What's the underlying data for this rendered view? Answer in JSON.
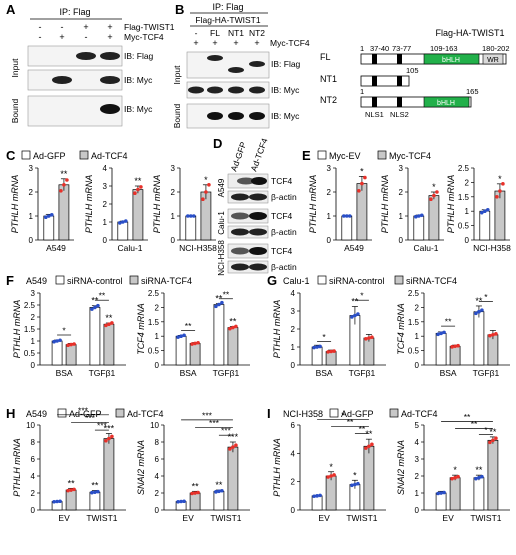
{
  "panel_labels": [
    "A",
    "B",
    "C",
    "D",
    "E",
    "F",
    "G",
    "H",
    "I"
  ],
  "panelA": {
    "header": "IP: Flag",
    "rows": [
      "Flag-TWIST1",
      "Myc-TCF4"
    ],
    "signs": [
      [
        "-",
        "-",
        "+",
        "+"
      ],
      [
        "-",
        "+",
        "-",
        "+"
      ]
    ],
    "sections": [
      "Input",
      "Bound"
    ],
    "blot_labels": [
      "IB: Flag",
      "IB: Myc",
      "IB: Myc"
    ]
  },
  "panelB": {
    "header": "IP: Flag",
    "construct": "Flag-HA-TWIST1",
    "lanes": [
      "-",
      "FL",
      "NT1",
      "NT2"
    ],
    "myc_row": "Myc-TCF4",
    "myc_signs": [
      "+",
      "+",
      "+",
      "+"
    ],
    "sections": [
      "Input",
      "Bound"
    ],
    "blot_labels": [
      "IB: Flag",
      "IB: Myc",
      "IB: Myc"
    ]
  },
  "domain": {
    "title": "Flag-HA-TWIST1",
    "rows": [
      {
        "name": "FL",
        "start": "1",
        "pos": [
          "37-40",
          "73-77",
          "109-163",
          "180-202"
        ],
        "bhlh": "bHLH",
        "wr": "WR"
      },
      {
        "name": "NT1",
        "end": "105"
      },
      {
        "name": "NT2",
        "start": "1",
        "end": "165",
        "bhlh": "bHLH",
        "nls": [
          "NLS1",
          "NLS2"
        ]
      }
    ],
    "colors": {
      "bhlh": "#22b04a",
      "wr": "#d9d9d9"
    }
  },
  "panelD": {
    "cols": [
      "Ad-GFP",
      "Ad-TCF4"
    ],
    "cells": [
      "A549",
      "Calu-1",
      "NCI-H358"
    ],
    "blots": [
      "TCF4",
      "β-actin"
    ]
  },
  "legendC": [
    "Ad-GFP",
    "Ad-TCF4"
  ],
  "legendE": [
    "Myc-EV",
    "Myc-TCF4"
  ],
  "legendF": [
    "A549",
    "siRNA-control",
    "siRNA-TCF4"
  ],
  "legendG": [
    "Calu-1",
    "siRNA-control",
    "siRNA-TCF4"
  ],
  "legendH": [
    "A549",
    "Ad-GFP",
    "Ad-TCF4"
  ],
  "legendI": [
    "NCI-H358",
    "Ad-GFP",
    "Ad-TCF4"
  ],
  "chart_data": [
    {
      "id": "C1",
      "type": "bar",
      "ylabel": "PTHLH mRNA",
      "xlabel": "A549",
      "ylim": [
        0,
        3
      ],
      "ticks": [
        0,
        1,
        2,
        3
      ],
      "categories": [
        "Ad-GFP",
        "Ad-TCF4"
      ],
      "values": [
        1,
        2.3
      ],
      "errors": [
        0.07,
        0.25
      ],
      "sig": [
        "",
        "**"
      ],
      "points": [
        [
          0.95,
          1.0,
          1.05
        ],
        [
          2.05,
          2.3,
          2.5
        ]
      ]
    },
    {
      "id": "C2",
      "type": "bar",
      "ylabel": "PTHLH mRNA",
      "xlabel": "Calu-1",
      "ylim": [
        0,
        4
      ],
      "ticks": [
        0,
        1,
        2,
        3,
        4
      ],
      "categories": [
        "Ad-GFP",
        "Ad-TCF4"
      ],
      "values": [
        1,
        2.8
      ],
      "errors": [
        0.05,
        0.2
      ],
      "sig": [
        "",
        "**"
      ],
      "points": [
        [
          0.95,
          1.0,
          1.05
        ],
        [
          2.6,
          2.8,
          2.95
        ]
      ]
    },
    {
      "id": "C3",
      "type": "bar",
      "ylabel": "PTHLH mRNA",
      "xlabel": "NCI-H358",
      "ylim": [
        0,
        3
      ],
      "ticks": [
        0,
        1,
        2,
        3
      ],
      "categories": [
        "Ad-GFP",
        "Ad-TCF4"
      ],
      "values": [
        1,
        2.0
      ],
      "errors": [
        0.03,
        0.3
      ],
      "sig": [
        "",
        "*"
      ],
      "points": [
        [
          1.0,
          1.0,
          1.0
        ],
        [
          1.7,
          2.0,
          2.3
        ]
      ]
    },
    {
      "id": "E1",
      "type": "bar",
      "ylabel": "PTHLH mRNA",
      "xlabel": "A549",
      "ylim": [
        0,
        3
      ],
      "ticks": [
        0,
        1,
        2,
        3
      ],
      "categories": [
        "Myc-EV",
        "Myc-TCF4"
      ],
      "values": [
        1,
        2.35
      ],
      "errors": [
        0.03,
        0.3
      ],
      "sig": [
        "",
        "*"
      ],
      "points": [
        [
          1.0,
          1.0,
          1.0
        ],
        [
          2.05,
          2.35,
          2.6
        ]
      ]
    },
    {
      "id": "E2",
      "type": "bar",
      "ylabel": "PTHLH mRNA",
      "xlabel": "Calu-1",
      "ylim": [
        0,
        3
      ],
      "ticks": [
        0,
        1,
        2,
        3
      ],
      "categories": [
        "Myc-EV",
        "Myc-TCF4"
      ],
      "values": [
        1,
        1.85
      ],
      "errors": [
        0.04,
        0.15
      ],
      "sig": [
        "",
        "*"
      ],
      "points": [
        [
          0.97,
          1.0,
          1.03
        ],
        [
          1.7,
          1.85,
          2.0
        ]
      ]
    },
    {
      "id": "E3",
      "type": "bar",
      "ylabel": "PTHLH mRNA",
      "xlabel": "NCI-H358",
      "ylim": [
        0,
        2.5
      ],
      "ticks": [
        0,
        0.5,
        1,
        1.5,
        2,
        2.5
      ],
      "categories": [
        "Myc-EV",
        "Myc-TCF4"
      ],
      "values": [
        1,
        1.7
      ],
      "errors": [
        0.05,
        0.25
      ],
      "sig": [
        "",
        "*"
      ],
      "points": [
        [
          0.95,
          1.0,
          1.05
        ],
        [
          1.5,
          1.7,
          1.95
        ]
      ]
    },
    {
      "id": "F1",
      "type": "grouped",
      "ylabel": "PTHLH mRNA",
      "ylim": [
        0,
        3
      ],
      "ticks": [
        0,
        0.5,
        1,
        1.5,
        2,
        2.5,
        3
      ],
      "groups": [
        "BSA",
        "TGFβ1"
      ],
      "values": [
        [
          1,
          0.85
        ],
        [
          2.4,
          1.7
        ]
      ],
      "errors": [
        [
          0.04,
          0.05
        ],
        [
          0.07,
          0.05
        ]
      ],
      "sig": [
        [
          "",
          ""
        ],
        [
          "**",
          "**"
        ]
      ],
      "brackets": [
        {
          "from": [
            0,
            0
          ],
          "to": [
            0,
            1
          ],
          "y": 1.25,
          "text": "*"
        },
        {
          "from": [
            1,
            0
          ],
          "to": [
            1,
            1
          ],
          "y": 2.7,
          "text": "**"
        }
      ],
      "ytick_fmt": "1"
    },
    {
      "id": "F2",
      "type": "grouped",
      "ylabel": "TCF4 mRNA",
      "ylim": [
        0,
        2.5
      ],
      "ticks": [
        0,
        0.5,
        1,
        1.5,
        2,
        2.5
      ],
      "groups": [
        "BSA",
        "TGFβ1"
      ],
      "values": [
        [
          1,
          0.75
        ],
        [
          2.1,
          1.3
        ]
      ],
      "errors": [
        [
          0.03,
          0.03
        ],
        [
          0.03,
          0.04
        ]
      ],
      "sig": [
        [
          "",
          ""
        ],
        [
          "**",
          "**"
        ]
      ],
      "brackets": [
        {
          "from": [
            0,
            0
          ],
          "to": [
            0,
            1
          ],
          "y": 1.2,
          "text": "**"
        },
        {
          "from": [
            1,
            0
          ],
          "to": [
            1,
            1
          ],
          "y": 2.3,
          "text": "**"
        }
      ]
    },
    {
      "id": "G1",
      "type": "grouped",
      "ylabel": "PTHLH mRNA",
      "ylim": [
        0,
        4
      ],
      "ticks": [
        0,
        1,
        2,
        3,
        4
      ],
      "groups": [
        "BSA",
        "TGFβ1"
      ],
      "values": [
        [
          1,
          0.75
        ],
        [
          2.75,
          1.5
        ]
      ],
      "errors": [
        [
          0.1,
          0.08
        ],
        [
          0.5,
          0.2
        ]
      ],
      "sig": [
        [
          "",
          ""
        ],
        [
          "**",
          ""
        ]
      ],
      "brackets": [
        {
          "from": [
            0,
            0
          ],
          "to": [
            0,
            1
          ],
          "y": 1.3,
          "text": "*"
        },
        {
          "from": [
            1,
            0
          ],
          "to": [
            1,
            1
          ],
          "y": 3.6,
          "text": "*"
        }
      ]
    },
    {
      "id": "G2",
      "type": "grouped",
      "ylabel": "TCF4 mRNA",
      "ylim": [
        0,
        2.5
      ],
      "ticks": [
        0,
        0.5,
        1,
        1.5,
        2,
        2.5
      ],
      "groups": [
        "BSA",
        "TGFβ1"
      ],
      "values": [
        [
          1.1,
          0.65
        ],
        [
          1.85,
          1.05
        ]
      ],
      "errors": [
        [
          0.05,
          0.04
        ],
        [
          0.2,
          0.15
        ]
      ],
      "sig": [
        [
          "",
          ""
        ],
        [
          "**",
          ""
        ]
      ],
      "brackets": [
        {
          "from": [
            0,
            0
          ],
          "to": [
            0,
            1
          ],
          "y": 1.35,
          "text": "**"
        },
        {
          "from": [
            1,
            0
          ],
          "to": [
            1,
            1
          ],
          "y": 2.2,
          "text": "*"
        }
      ]
    },
    {
      "id": "H1",
      "type": "grouped",
      "ylabel": "PTHLH mRNA",
      "ylim": [
        0,
        10
      ],
      "ticks": [
        0,
        2,
        4,
        6,
        8,
        10
      ],
      "groups": [
        "EV",
        "TWIST1"
      ],
      "values": [
        [
          1,
          2.35
        ],
        [
          2.1,
          8.4
        ]
      ],
      "errors": [
        [
          0.05,
          0.2
        ],
        [
          0.2,
          0.6
        ]
      ],
      "sig": [
        [
          "",
          "**"
        ],
        [
          "**",
          "***"
        ]
      ],
      "brackets": [
        {
          "from": [
            0,
            0
          ],
          "to": [
            1,
            1
          ],
          "y": 11.2,
          "text": "***"
        },
        {
          "from": [
            0,
            1
          ],
          "to": [
            1,
            1
          ],
          "y": 10.3,
          "text": "***"
        },
        {
          "from": [
            1,
            0
          ],
          "to": [
            1,
            1
          ],
          "y": 9.4,
          "text": "***"
        }
      ]
    },
    {
      "id": "H2",
      "type": "grouped",
      "ylabel": "SNAI2 mRNA",
      "ylim": [
        0,
        10
      ],
      "ticks": [
        0,
        2,
        4,
        6,
        8,
        10
      ],
      "groups": [
        "EV",
        "TWIST1"
      ],
      "values": [
        [
          1,
          2.0
        ],
        [
          2.2,
          7.4
        ]
      ],
      "errors": [
        [
          0.05,
          0.2
        ],
        [
          0.15,
          0.6
        ]
      ],
      "sig": [
        [
          "",
          "**"
        ],
        [
          "**",
          "***"
        ]
      ],
      "brackets": [
        {
          "from": [
            0,
            0
          ],
          "to": [
            1,
            1
          ],
          "y": 10.6,
          "text": "***"
        },
        {
          "from": [
            0,
            1
          ],
          "to": [
            1,
            1
          ],
          "y": 9.7,
          "text": "***"
        },
        {
          "from": [
            1,
            0
          ],
          "to": [
            1,
            1
          ],
          "y": 8.8,
          "text": "***"
        }
      ]
    },
    {
      "id": "I1",
      "type": "grouped",
      "ylabel": "PTHLH mRNA",
      "ylim": [
        0,
        6
      ],
      "ticks": [
        0,
        2,
        4,
        6
      ],
      "groups": [
        "EV",
        "TWIST1"
      ],
      "values": [
        [
          1,
          2.4
        ],
        [
          1.8,
          4.5
        ]
      ],
      "errors": [
        [
          0.04,
          0.3
        ],
        [
          0.3,
          0.5
        ]
      ],
      "sig": [
        [
          "",
          "*"
        ],
        [
          "*",
          "**"
        ]
      ],
      "brackets": [
        {
          "from": [
            0,
            0
          ],
          "to": [
            1,
            1
          ],
          "y": 6.4,
          "text": "*"
        },
        {
          "from": [
            0,
            1
          ],
          "to": [
            1,
            1
          ],
          "y": 5.9,
          "text": "**"
        },
        {
          "from": [
            1,
            0
          ],
          "to": [
            1,
            1
          ],
          "y": 5.4,
          "text": "**"
        }
      ]
    },
    {
      "id": "I2",
      "type": "grouped",
      "ylabel": "SNAI2 mRNA",
      "ylim": [
        0,
        5
      ],
      "ticks": [
        0,
        1,
        2,
        3,
        4,
        5
      ],
      "groups": [
        "EV",
        "TWIST1"
      ],
      "values": [
        [
          1,
          1.9
        ],
        [
          1.9,
          4.1
        ]
      ],
      "errors": [
        [
          0.1,
          0.15
        ],
        [
          0.15,
          0.2
        ]
      ],
      "sig": [
        [
          "",
          "*"
        ],
        [
          "**",
          "**"
        ]
      ],
      "brackets": [
        {
          "from": [
            0,
            0
          ],
          "to": [
            1,
            1
          ],
          "y": 5.2,
          "text": "**"
        },
        {
          "from": [
            0,
            1
          ],
          "to": [
            1,
            1
          ],
          "y": 4.8,
          "text": "**"
        },
        {
          "from": [
            1,
            0
          ],
          "to": [
            1,
            1
          ],
          "y": 4.45,
          "text": "*"
        }
      ]
    }
  ]
}
